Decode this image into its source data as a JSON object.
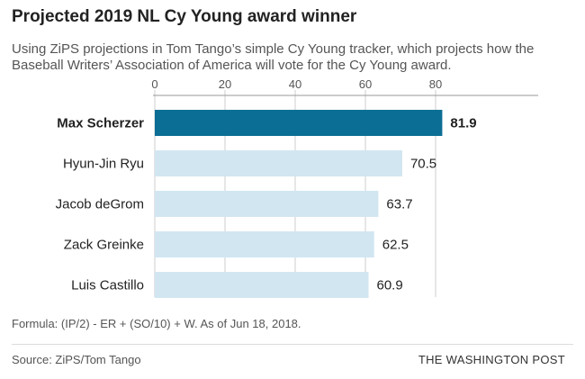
{
  "title": "Projected 2019 NL Cy Young award winner",
  "subtitle": "Using ZiPS projections in Tom Tango’s simple Cy Young tracker, which projects how the Baseball Writers’ Association of America will vote for the Cy Young award.",
  "note": "Formula: (IP/2) - ER + (SO/10) + W. As of Jun 18, 2018.",
  "source": "Source: ZiPS/Tom Tango",
  "credit": "THE WASHINGTON POST",
  "chart_data": {
    "type": "bar",
    "orientation": "horizontal",
    "categories": [
      "Max Scherzer",
      "Hyun-Jin Ryu",
      "Jacob deGrom",
      "Zack Greinke",
      "Luis Castillo"
    ],
    "values": [
      81.9,
      70.5,
      63.7,
      62.5,
      60.9
    ],
    "value_labels": [
      "81.9",
      "70.5",
      "63.7",
      "62.5",
      "60.9"
    ],
    "highlight": "Max Scherzer",
    "ticks": [
      0,
      20,
      40,
      60,
      80
    ],
    "tick_labels": [
      "0",
      "20",
      "40",
      "60",
      "80"
    ],
    "xlim": [
      0,
      100
    ],
    "grid": true,
    "colors": {
      "highlight": "#0b6e94",
      "default": "#d2e6f2",
      "grid": "#cccccc",
      "axis": "#999999"
    }
  }
}
